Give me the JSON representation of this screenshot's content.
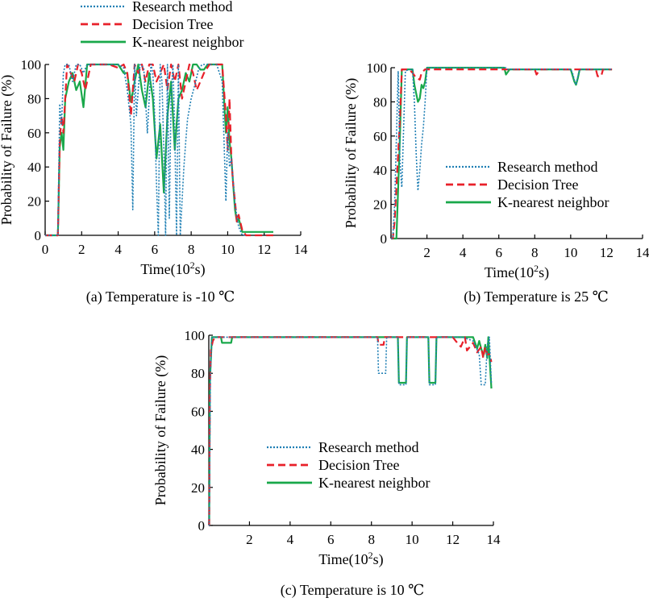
{
  "series_styles": {
    "Research method": {
      "color": "#1f7fb4",
      "dash": "2,2",
      "width": 1.6
    },
    "Decision Tree": {
      "color": "#e8202a",
      "dash": "9,5",
      "width": 2.2
    },
    "K-nearest neighbor": {
      "color": "#19a84a",
      "dash": "",
      "width": 2.2
    }
  },
  "chart_data": [
    {
      "type": "line",
      "caption": "(a) Temperature is -10 ℃",
      "xlabel_base": "Time(10",
      "xlabel_sup": "2",
      "xlabel_tail": "s)",
      "ylabel": "Probability of Failure (%)",
      "xlim": [
        0,
        14
      ],
      "ylim": [
        0,
        100
      ],
      "xticks": [
        0,
        2,
        4,
        6,
        8,
        10,
        12,
        14
      ],
      "xtick_labels": [
        "0",
        "2",
        "4",
        "6",
        "8",
        "10",
        "12",
        "14"
      ],
      "yticks": [
        0,
        20,
        40,
        60,
        80,
        100
      ],
      "ytick_labels": [
        "0",
        "20",
        "40",
        "60",
        "80",
        "100"
      ],
      "legend": [
        "Research method",
        "Decision Tree",
        "K-nearest neighbor"
      ],
      "series": [
        {
          "name": "Research method",
          "x": [
            0,
            0.7,
            0.8,
            0.9,
            1.0,
            1.1,
            1.3,
            1.5,
            1.7,
            1.9,
            2.1,
            2.3,
            2.6,
            3.0,
            3.5,
            4.0,
            4.3,
            4.5,
            4.7,
            4.8,
            4.9,
            5.0,
            5.2,
            5.4,
            5.6,
            5.8,
            5.9,
            6.0,
            6.1,
            6.2,
            6.3,
            6.4,
            6.5,
            6.6,
            6.7,
            6.8,
            6.9,
            7.0,
            7.1,
            7.2,
            7.3,
            7.4,
            7.5,
            7.6,
            7.7,
            7.8,
            8.0,
            8.2,
            8.4,
            8.6,
            9.0,
            9.4,
            9.7,
            9.9,
            10.0,
            10.1,
            10.2,
            10.4,
            10.6,
            10.8,
            11.0
          ],
          "y": [
            0,
            0,
            77,
            65,
            95,
            100,
            100,
            90,
            100,
            100,
            95,
            100,
            100,
            100,
            100,
            100,
            98,
            85,
            65,
            15,
            100,
            70,
            100,
            98,
            60,
            100,
            95,
            70,
            30,
            0,
            100,
            90,
            50,
            0,
            100,
            10,
            80,
            100,
            60,
            0,
            100,
            0,
            20,
            40,
            55,
            68,
            80,
            88,
            97,
            100,
            100,
            100,
            90,
            20,
            60,
            40,
            45,
            18,
            5,
            0,
            0
          ]
        },
        {
          "name": "Decision Tree",
          "x": [
            0,
            0.7,
            0.8,
            0.9,
            1.0,
            1.2,
            1.4,
            1.6,
            1.8,
            2.0,
            2.2,
            2.5,
            3.0,
            3.5,
            4.0,
            4.3,
            4.5,
            4.7,
            4.9,
            5.1,
            5.3,
            5.5,
            5.7,
            5.9,
            6.1,
            6.3,
            6.5,
            6.7,
            6.9,
            7.1,
            7.3,
            7.5,
            7.7,
            7.9,
            8.1,
            8.3,
            8.5,
            8.7,
            9.0,
            9.4,
            9.7,
            9.9,
            10.0,
            10.1,
            10.2,
            10.3,
            10.4,
            10.5,
            10.6,
            10.8,
            11.0,
            11.5,
            12.0,
            12.5
          ],
          "y": [
            0,
            0,
            55,
            70,
            60,
            100,
            95,
            90,
            100,
            95,
            85,
            100,
            100,
            100,
            98,
            100,
            95,
            70,
            100,
            95,
            100,
            90,
            100,
            100,
            90,
            95,
            100,
            85,
            100,
            90,
            100,
            80,
            90,
            100,
            95,
            85,
            90,
            95,
            100,
            100,
            100,
            70,
            50,
            80,
            45,
            30,
            20,
            8,
            12,
            3,
            0,
            0,
            0,
            0
          ]
        },
        {
          "name": "K-nearest neighbor",
          "x": [
            0,
            0.7,
            0.8,
            0.9,
            1.0,
            1.1,
            1.3,
            1.5,
            1.7,
            1.9,
            2.1,
            2.3,
            2.6,
            3.0,
            3.5,
            4.0,
            4.3,
            4.5,
            4.7,
            4.9,
            5.1,
            5.3,
            5.5,
            5.7,
            5.9,
            6.1,
            6.3,
            6.5,
            6.7,
            6.9,
            7.1,
            7.3,
            7.5,
            7.7,
            7.9,
            8.1,
            8.3,
            8.5,
            8.7,
            8.9,
            9.1,
            9.4,
            9.7,
            9.9,
            10.0,
            10.1,
            10.2,
            10.3,
            10.4,
            10.5,
            10.6,
            10.8,
            11.0,
            11.5,
            12.0,
            12.5
          ],
          "y": [
            0,
            0,
            52,
            60,
            50,
            80,
            90,
            95,
            85,
            90,
            75,
            100,
            100,
            100,
            100,
            100,
            95,
            95,
            78,
            90,
            100,
            85,
            75,
            95,
            80,
            45,
            65,
            25,
            70,
            90,
            50,
            80,
            85,
            95,
            90,
            100,
            100,
            97,
            97,
            100,
            100,
            100,
            100,
            60,
            75,
            55,
            45,
            30,
            15,
            8,
            10,
            2,
            2,
            2,
            2,
            2
          ]
        }
      ]
    },
    {
      "type": "line",
      "caption": "(b) Temperature is 25 ℃",
      "xlabel_base": "Time(10",
      "xlabel_sup": "2",
      "xlabel_tail": "s)",
      "ylabel": "Probability of Failure (%)",
      "xlim": [
        0,
        14
      ],
      "ylim": [
        0,
        100
      ],
      "xticks": [
        0,
        2,
        4,
        6,
        8,
        10,
        12,
        14
      ],
      "xtick_labels": [
        "",
        "2",
        "4",
        "6",
        "8",
        "10",
        "12",
        "14"
      ],
      "yticks": [
        0,
        20,
        40,
        60,
        80,
        100
      ],
      "ytick_labels": [
        "0",
        "20",
        "40",
        "60",
        "80",
        "100"
      ],
      "legend": [
        "Research method",
        "Decision Tree",
        "K-nearest neighbor"
      ],
      "series": [
        {
          "name": "Research method",
          "x": [
            0,
            0.1,
            0.2,
            0.4,
            0.5,
            0.6,
            0.8,
            1.0,
            1.2,
            1.3,
            1.4,
            1.5,
            1.6,
            1.7,
            1.8,
            1.9,
            2.0,
            2.5,
            3.0,
            4.0,
            5.0,
            6.0,
            6.4,
            6.5,
            7.0,
            8.0,
            9.0,
            10.0,
            10.1,
            10.2,
            10.3,
            10.4,
            10.5,
            10.6,
            11.0,
            12.0,
            12.3
          ],
          "y": [
            0,
            0,
            20,
            98,
            45,
            30,
            98,
            99,
            99,
            80,
            50,
            28,
            40,
            55,
            65,
            80,
            100,
            100,
            100,
            100,
            100,
            100,
            100,
            99,
            99,
            99,
            99,
            99,
            97,
            93,
            90,
            95,
            99,
            99,
            99,
            99,
            99
          ]
        },
        {
          "name": "Decision Tree",
          "x": [
            0,
            0.1,
            0.2,
            0.3,
            0.5,
            0.6,
            1.0,
            1.2,
            1.4,
            1.6,
            1.7,
            1.8,
            1.9,
            2.0,
            3.0,
            4.0,
            5.0,
            6.0,
            7.0,
            8.0,
            8.1,
            8.3,
            9.0,
            10.0,
            10.5,
            11.0,
            11.4,
            11.5,
            11.7,
            11.8,
            12.0,
            12.3
          ],
          "y": [
            0,
            0,
            10,
            30,
            70,
            99,
            99,
            97,
            94,
            93,
            97,
            98,
            99,
            99,
            99,
            99,
            99,
            99,
            99,
            99,
            96,
            99,
            99,
            99,
            99,
            99,
            99,
            95,
            95,
            99,
            99,
            99
          ]
        },
        {
          "name": "K-nearest neighbor",
          "x": [
            0,
            0.1,
            0.3,
            0.5,
            0.6,
            1.0,
            1.2,
            1.3,
            1.4,
            1.5,
            1.6,
            1.7,
            1.8,
            1.9,
            2.0,
            3.0,
            4.0,
            5.0,
            6.0,
            6.3,
            6.4,
            6.6,
            7.0,
            8.0,
            9.0,
            10.0,
            10.2,
            10.3,
            10.4,
            10.5,
            10.6,
            11.0,
            12.0,
            12.3
          ],
          "y": [
            0,
            0,
            0,
            60,
            99,
            99,
            99,
            90,
            85,
            80,
            82,
            90,
            88,
            92,
            100,
            100,
            100,
            100,
            100,
            100,
            96,
            99,
            99,
            99,
            99,
            99,
            92,
            90,
            94,
            99,
            99,
            99,
            99,
            99
          ]
        }
      ]
    },
    {
      "type": "line",
      "caption": "(c) Temperature is 10 ℃",
      "xlabel_base": "Time(10",
      "xlabel_sup": "2",
      "xlabel_tail": "s)",
      "ylabel": "Probability of Failure (%)",
      "xlim": [
        0,
        14
      ],
      "ylim": [
        0,
        100
      ],
      "xticks": [
        0,
        2,
        4,
        6,
        8,
        10,
        12,
        14
      ],
      "xtick_labels": [
        "",
        "2",
        "4",
        "6",
        "8",
        "10",
        "12",
        "14"
      ],
      "yticks": [
        0,
        20,
        40,
        60,
        80,
        100
      ],
      "ytick_labels": [
        "0",
        "20",
        "40",
        "60",
        "80",
        "100"
      ],
      "legend": [
        "Research method",
        "Decision Tree",
        "K-nearest neighbor"
      ],
      "series": [
        {
          "name": "Research method",
          "x": [
            0,
            0.02,
            0.08,
            0.15,
            1,
            2,
            4,
            6,
            8,
            8.3,
            8.35,
            8.7,
            8.75,
            9.0,
            9.3,
            9.35,
            9.7,
            9.75,
            10.0,
            10.8,
            10.85,
            11.15,
            11.2,
            12.0,
            12.5,
            13.0,
            13.3,
            13.4,
            13.6,
            13.7,
            13.8,
            13.9
          ],
          "y": [
            0,
            0,
            80,
            99,
            99,
            99,
            99,
            99,
            99,
            99,
            80,
            80,
            99,
            99,
            99,
            74,
            74,
            99,
            99,
            99,
            74,
            74,
            99,
            99,
            99,
            97,
            90,
            74,
            74,
            95,
            99,
            75
          ]
        },
        {
          "name": "Decision Tree",
          "x": [
            0,
            0.02,
            0.05,
            0.1,
            0.2,
            0.3,
            1,
            2,
            4,
            6,
            8,
            8.3,
            8.35,
            8.6,
            8.65,
            9.0,
            10.0,
            10.8,
            11.2,
            12.0,
            12.3,
            12.4,
            12.6,
            12.7,
            13.0,
            13.2,
            13.4,
            13.5,
            13.6,
            13.7,
            13.8,
            13.9
          ],
          "y": [
            0,
            0,
            70,
            92,
            97,
            99,
            99,
            99,
            99,
            99,
            99,
            99,
            95,
            95,
            99,
            99,
            99,
            99,
            99,
            99,
            95,
            94,
            99,
            92,
            96,
            91,
            94,
            88,
            94,
            90,
            90,
            86
          ]
        },
        {
          "name": "K-nearest neighbor",
          "x": [
            0,
            0.02,
            0.05,
            0.15,
            0.6,
            0.65,
            1.1,
            1.15,
            2,
            4,
            6,
            8,
            9.0,
            9.3,
            9.35,
            9.7,
            9.75,
            10.0,
            10.8,
            10.85,
            11.15,
            11.2,
            12.0,
            12.5,
            13.0,
            13.2,
            13.3,
            13.5,
            13.6,
            13.7,
            13.75,
            13.9
          ],
          "y": [
            0,
            0,
            75,
            99,
            99,
            96,
            96,
            99,
            99,
            99,
            99,
            99,
            99,
            99,
            75,
            75,
            99,
            99,
            99,
            75,
            75,
            99,
            99,
            99,
            99,
            93,
            97,
            89,
            95,
            88,
            99,
            72
          ]
        }
      ]
    }
  ]
}
